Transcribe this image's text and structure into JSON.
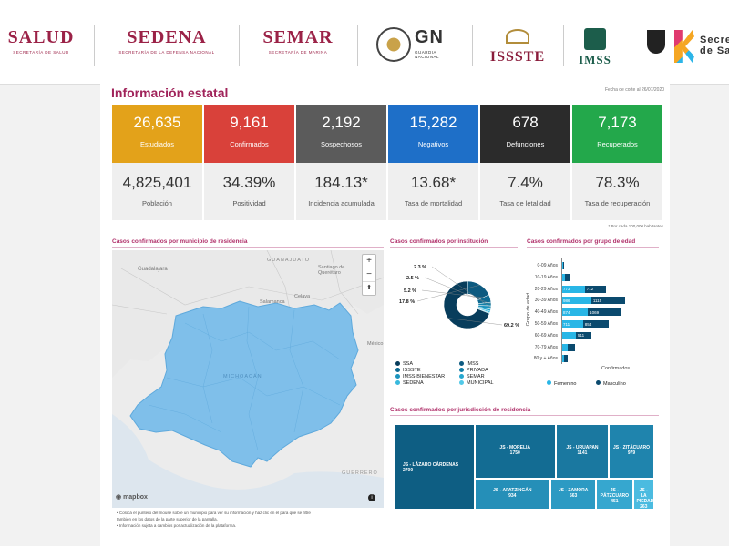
{
  "header": {
    "logos": [
      {
        "main": "SALUD",
        "sub": "SECRETARÍA DE SALUD"
      },
      {
        "main": "SEDENA",
        "sub": "SECRETARÍA DE LA DEFENSA NACIONAL"
      },
      {
        "main": "SEMAR",
        "sub": "SECRETARÍA DE MARINA"
      },
      {
        "main": "GN",
        "sub": "GUARDIA NACIONAL"
      },
      {
        "main": "ISSSTE"
      },
      {
        "main": "IMSS"
      },
      {
        "main": "Secre",
        "sub": "de Sa"
      }
    ]
  },
  "page": {
    "title": "Información estatal",
    "cut_date": "Fecha de corte al 26/07/2020",
    "footnote": "* Por cada 100,000 habitantes"
  },
  "cards": [
    {
      "value": "26,635",
      "label": "Estudiados",
      "color": "#e3a21a",
      "sub_value": "4,825,401",
      "sub_label": "Población"
    },
    {
      "value": "9,161",
      "label": "Confirmados",
      "color": "#d9413a",
      "sub_value": "34.39%",
      "sub_label": "Positividad"
    },
    {
      "value": "2,192",
      "label": "Sospechosos",
      "color": "#5b5b5b",
      "sub_value": "184.13*",
      "sub_label": "Incidencia acumulada"
    },
    {
      "value": "15,282",
      "label": "Negativos",
      "color": "#1e6fc8",
      "sub_value": "13.68*",
      "sub_label": "Tasa de mortalidad"
    },
    {
      "value": "678",
      "label": "Defunciones",
      "color": "#2b2b2b",
      "sub_value": "7.4%",
      "sub_label": "Tasa de letalidad"
    },
    {
      "value": "7,173",
      "label": "Recuperados",
      "color": "#23a84b",
      "sub_value": "78.3%",
      "sub_label": "Tasa de recuperación"
    }
  ],
  "map_section": {
    "title": "Casos confirmados por municipio de residencia",
    "places": [
      "Guadalajara",
      "GUANAJUATO",
      "Santiago de Querétaro",
      "Celaya",
      "Salamanca",
      "MICHOACÁN",
      "GUERRERO",
      "México"
    ],
    "zoom_in": "+",
    "zoom_out": "−",
    "compass": "⬆",
    "attribution": "mapbox",
    "info": "i",
    "notes": [
      "• Coloca el puntero del mouse sobre un municipio para ver su información y haz clic en él para que se filtre",
      "  también en los datos de la parte superior de la pantalla.",
      "• Información sujeta a cambios por actualización de la plataforma."
    ]
  },
  "institution_section": {
    "title": "Casos confirmados por institución",
    "legend": [
      {
        "name": "SSA",
        "color": "#083d5c"
      },
      {
        "name": "IMSS",
        "color": "#0d5a80"
      },
      {
        "name": "ISSSTE",
        "color": "#0e6a92"
      },
      {
        "name": "PRIVADA",
        "color": "#1480a8"
      },
      {
        "name": "IMSS-BIENESTAR",
        "color": "#1b93bd"
      },
      {
        "name": "SEMAR",
        "color": "#27a7cf"
      },
      {
        "name": "SEDENA",
        "color": "#38b9dd"
      },
      {
        "name": "MUNICIPAL",
        "color": "#52c9e8"
      }
    ]
  },
  "age_section": {
    "title": "Casos confirmados por grupo de edad",
    "y_label": "Grupo de edad",
    "x_label": "Confirmados",
    "legend": [
      {
        "name": "Femenino",
        "color": "#29b6e6"
      },
      {
        "name": "Masculino",
        "color": "#0b4a6e"
      }
    ]
  },
  "jurisdiction_section": {
    "title": "Casos confirmados por jurisdicción de residencia"
  },
  "chart_data": [
    {
      "type": "pie",
      "title": "Casos confirmados por institución",
      "labels": [
        "SSA",
        "IMSS",
        "ISSSTE",
        "PRIVADA",
        "IMSS-BIENESTAR",
        "SEMAR",
        "SEDENA",
        "MUNICIPAL"
      ],
      "values": [
        69.2,
        17.8,
        5.2,
        2.5,
        2.3,
        1.4,
        1.0,
        0.6
      ],
      "data_labels": [
        "69.2 %",
        "17.8 %",
        "5.2 %",
        "2.5 %",
        "2.3 %",
        "",
        "",
        ""
      ]
    },
    {
      "type": "bar",
      "orientation": "horizontal",
      "stacked": true,
      "title": "Casos confirmados por grupo de edad",
      "categories": [
        "0-09 Años",
        "10-19 Años",
        "20-29 Años",
        "30-39 Años",
        "40-49 Años",
        "50-59 Años",
        "60-69 Años",
        "70-79 Años",
        "80 y + Años"
      ],
      "series": [
        {
          "name": "Femenino",
          "values": [
            50,
            130,
            773,
            986,
            874,
            711,
            480,
            210,
            90
          ],
          "labels": [
            "",
            "",
            "773",
            "986",
            "874",
            "711",
            "",
            "",
            ""
          ]
        },
        {
          "name": "Masculino",
          "values": [
            55,
            150,
            712,
            1115,
            1069,
            854,
            511,
            250,
            110
          ],
          "labels": [
            "",
            "",
            "712",
            "1115",
            "1069",
            "854",
            "511",
            "",
            ""
          ]
        }
      ],
      "xlabel": "Confirmados",
      "ylabel": "Grupo de edad"
    },
    {
      "type": "treemap",
      "title": "Casos confirmados por jurisdicción de residencia",
      "items": [
        {
          "name": "JS - LÁZARO CÁRDENAS",
          "value": 2700
        },
        {
          "name": "JS - MORELIA",
          "value": 1750
        },
        {
          "name": "JS - URUAPAN",
          "value": 1141
        },
        {
          "name": "JS - ZITÁCUARO",
          "value": 979
        },
        {
          "name": "JS - APATZINGÁN",
          "value": 934
        },
        {
          "name": "JS - ZAMORA",
          "value": 563
        },
        {
          "name": "JS - PÁTZCUARO",
          "value": 451
        },
        {
          "name": "JS - LA PIEDAD",
          "value": 263
        }
      ]
    }
  ]
}
